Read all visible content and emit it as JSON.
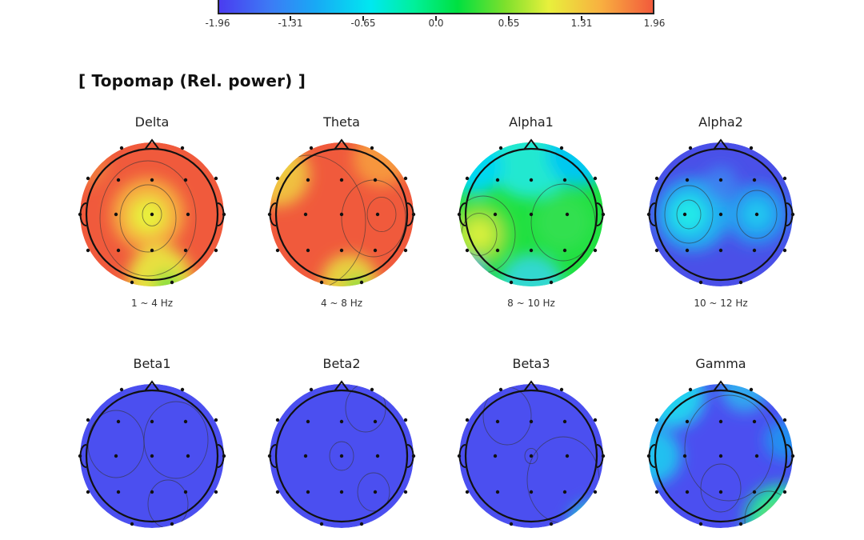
{
  "chart_data": {
    "type": "heatmap",
    "title": "[ Topomap (Rel. power) ]",
    "colorbar": {
      "range": [
        -1.96,
        1.96
      ],
      "ticks": [
        "-1.96",
        "-1.31",
        "-0.65",
        "0.0",
        "0.65",
        "1.31",
        "1.96"
      ],
      "colors": [
        "#4a3cf0",
        "#00e8f0",
        "#00e040",
        "#e8f03c",
        "#f25a3c"
      ]
    },
    "maps": [
      {
        "name": "Delta",
        "range": "1 ~ 4 Hz",
        "dominant": "high (red)"
      },
      {
        "name": "Theta",
        "range": "4 ~ 8 Hz",
        "dominant": "high (red)"
      },
      {
        "name": "Alpha1",
        "range": "8 ~ 10 Hz",
        "dominant": "neutral (green)"
      },
      {
        "name": "Alpha2",
        "range": "10 ~ 12 Hz",
        "dominant": "low (blue)"
      },
      {
        "name": "Beta1",
        "range": "",
        "dominant": "low (blue)"
      },
      {
        "name": "Beta2",
        "range": "",
        "dominant": "low (blue)"
      },
      {
        "name": "Beta3",
        "range": "",
        "dominant": "low (blue)"
      },
      {
        "name": "Gamma",
        "range": "",
        "dominant": "low (blue)"
      }
    ]
  }
}
